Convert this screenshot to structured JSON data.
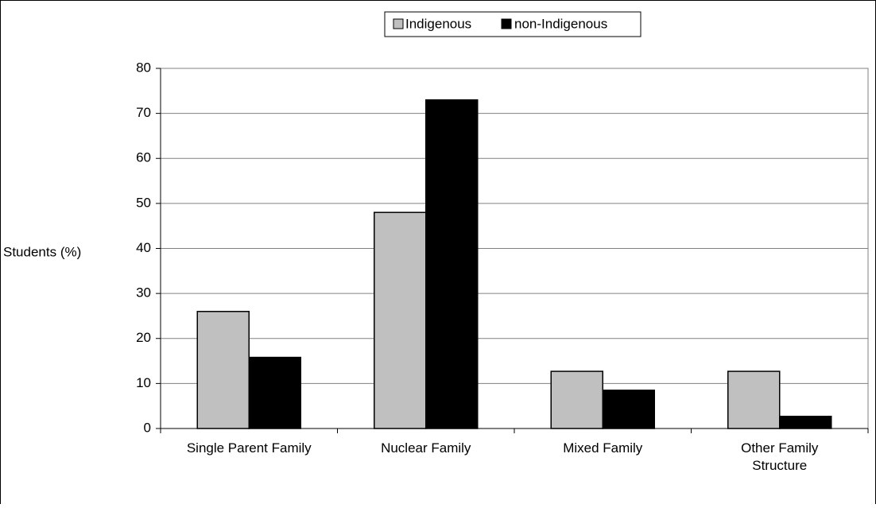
{
  "chart_data": {
    "type": "bar",
    "title": "",
    "xlabel": "",
    "ylabel": "Students (%)",
    "ylim": [
      0,
      80
    ],
    "yticks": [
      0,
      10,
      20,
      30,
      40,
      50,
      60,
      70,
      80
    ],
    "grid": true,
    "legend_position": "top",
    "categories": [
      [
        "Single Parent Family"
      ],
      [
        "Nuclear Family"
      ],
      [
        "Mixed Family"
      ],
      [
        "Other Family",
        "Structure"
      ]
    ],
    "series": [
      {
        "name": "Indigenous",
        "color": "#c0c0c0",
        "values": [
          26,
          48,
          12.7,
          12.7
        ]
      },
      {
        "name": "non-Indigenous",
        "color": "#000000",
        "values": [
          15.8,
          73,
          8.5,
          2.7
        ]
      }
    ]
  }
}
